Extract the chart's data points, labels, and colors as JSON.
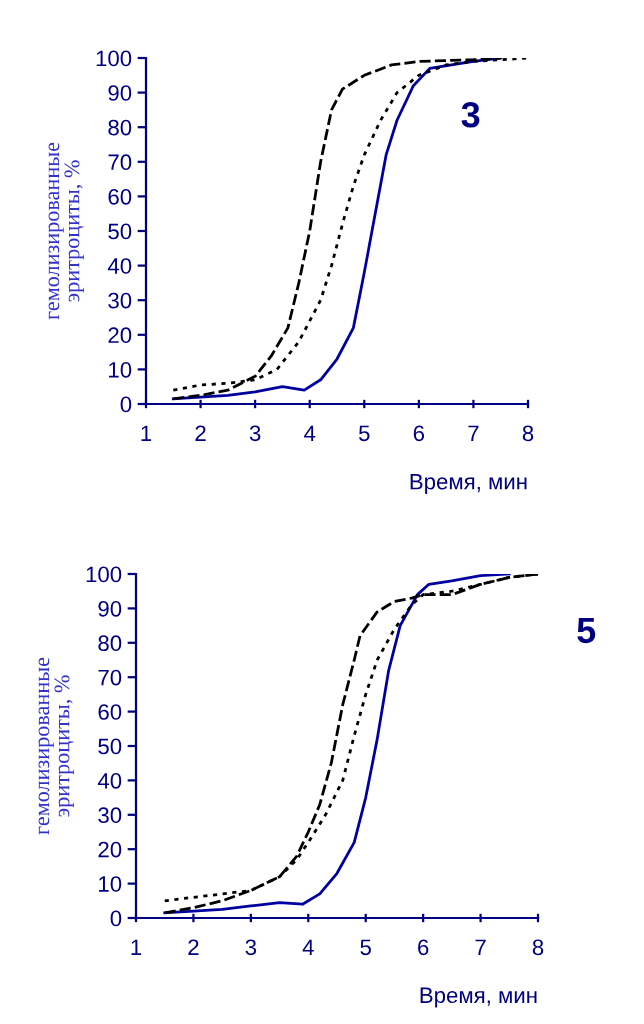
{
  "chart_data": [
    {
      "type": "line",
      "ylabel": "гемолизированные\nэритроциты, %",
      "xlabel": "Время, мин",
      "annotations": [
        "3"
      ],
      "xlim": [
        1,
        8
      ],
      "xticks": [
        1,
        2,
        3,
        4,
        5,
        6,
        7,
        8
      ],
      "ylim": [
        0,
        100
      ],
      "yticks": [
        0,
        10,
        20,
        30,
        40,
        50,
        60,
        70,
        80,
        90,
        100
      ],
      "grid": false,
      "legend": false,
      "marker": "none",
      "series": [
        {
          "color": "#000000",
          "line_style": "dashed",
          "x": [
            1.5,
            2,
            2.5,
            3,
            3.3,
            3.6,
            3.8,
            4,
            4.2,
            4.4,
            4.6,
            5,
            5.5,
            6,
            7,
            7.5
          ],
          "values": [
            1.5,
            2.5,
            4,
            8,
            14,
            22,
            35,
            50,
            70,
            85,
            91,
            95,
            98,
            99,
            99.5,
            100
          ]
        },
        {
          "color": "#000000",
          "line_style": "dotted",
          "x": [
            1.5,
            2,
            2.5,
            3,
            3.4,
            3.8,
            4.2,
            4.4,
            4.6,
            4.8,
            5,
            5.3,
            5.6,
            6,
            6.5,
            7,
            8
          ],
          "values": [
            4,
            5.5,
            6,
            7,
            10,
            18,
            30,
            40,
            52,
            63,
            72,
            82,
            90,
            95,
            98,
            99,
            100
          ]
        },
        {
          "color": "#0000a0",
          "line_style": "solid",
          "x": [
            1.5,
            2,
            2.5,
            3,
            3.5,
            3.9,
            4.2,
            4.5,
            4.8,
            5,
            5.2,
            5.4,
            5.6,
            5.9,
            6.2,
            7,
            7.5
          ],
          "values": [
            1.5,
            2,
            2.5,
            3.5,
            5,
            4,
            7,
            13,
            22,
            38,
            55,
            72,
            82,
            92,
            97,
            99,
            100
          ]
        }
      ]
    },
    {
      "type": "line",
      "ylabel": "гемолизированные\nэритроциты, %",
      "xlabel": "Время, мин",
      "annotations": [
        "5"
      ],
      "xlim": [
        1,
        8
      ],
      "xticks": [
        1,
        2,
        3,
        4,
        5,
        6,
        7,
        8
      ],
      "ylim": [
        0,
        100
      ],
      "yticks": [
        0,
        10,
        20,
        30,
        40,
        50,
        60,
        70,
        80,
        90,
        100
      ],
      "grid": false,
      "legend": false,
      "marker": "none",
      "series": [
        {
          "color": "#000000",
          "line_style": "dashed",
          "x": [
            1.5,
            2,
            2.5,
            3,
            3.5,
            3.8,
            4,
            4.2,
            4.4,
            4.6,
            4.8,
            4.9,
            5.2,
            5.5,
            5.8,
            6,
            6.5,
            7,
            7.5,
            8
          ],
          "values": [
            1.5,
            3,
            5,
            8,
            12,
            18,
            25,
            33,
            45,
            62,
            75,
            82,
            89,
            92,
            93,
            94,
            94,
            97,
            99,
            100
          ]
        },
        {
          "color": "#000000",
          "line_style": "dotted",
          "x": [
            1.5,
            2,
            2.5,
            3,
            3.5,
            3.8,
            4,
            4.3,
            4.6,
            4.8,
            5,
            5.2,
            5.5,
            5.8,
            6,
            6.5,
            7,
            7.5,
            8
          ],
          "values": [
            5,
            6,
            7,
            8,
            12,
            17,
            22,
            30,
            40,
            53,
            65,
            75,
            84,
            91,
            94,
            95,
            97,
            99,
            100
          ]
        },
        {
          "color": "#0000a0",
          "line_style": "solid",
          "x": [
            1.5,
            2,
            2.5,
            3,
            3.5,
            3.9,
            4.2,
            4.5,
            4.8,
            5,
            5.2,
            5.4,
            5.6,
            5.9,
            6.1,
            6.5,
            7,
            7.5
          ],
          "values": [
            1.5,
            2,
            2.5,
            3.5,
            4.5,
            4,
            7,
            13,
            22,
            35,
            52,
            72,
            85,
            94,
            97,
            98,
            99.5,
            100
          ]
        }
      ]
    }
  ]
}
